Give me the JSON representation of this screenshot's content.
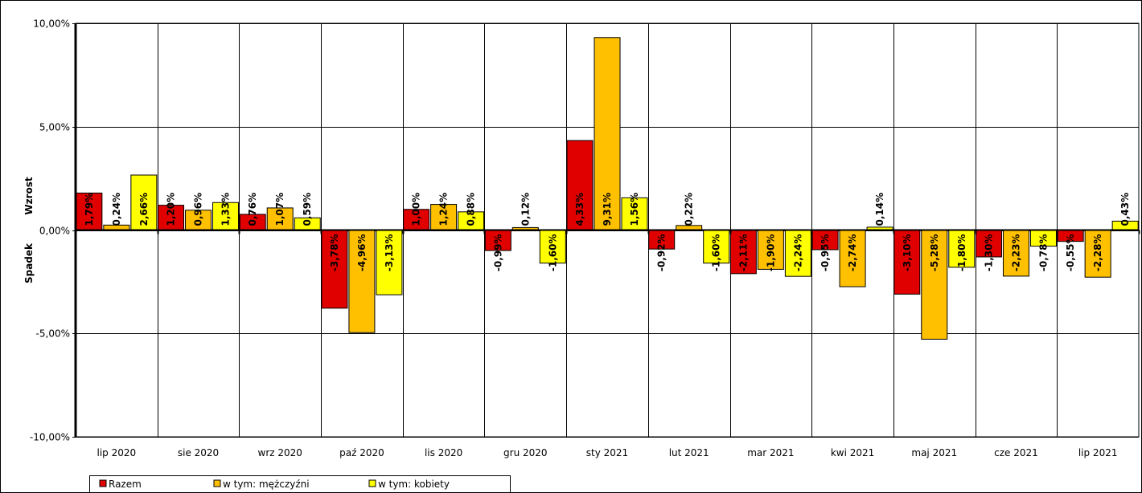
{
  "chart_data": {
    "type": "bar",
    "categories": [
      "lip 2020",
      "sie 2020",
      "wrz 2020",
      "paź 2020",
      "lis 2020",
      "gru 2020",
      "sty 2021",
      "lut 2021",
      "mar 2021",
      "kwi 2021",
      "maj 2021",
      "cze 2021",
      "lip 2021"
    ],
    "series": [
      {
        "name": "Razem",
        "color": "#E00000",
        "values": [
          1.79,
          1.2,
          0.76,
          -3.78,
          1.0,
          -0.99,
          4.33,
          -0.92,
          -2.11,
          -0.95,
          -3.1,
          -1.3,
          -0.55
        ],
        "labels": [
          "1,79%",
          "1,20%",
          "0,76%",
          "-3,78%",
          "1,00%",
          "-0,99%",
          "4,33%",
          "-0,92%",
          "-2,11%",
          "-0,95%",
          "-3,10%",
          "-1,30%",
          "-0,55%"
        ]
      },
      {
        "name": "w tym: mężczyźni",
        "color": "#FFC000",
        "values": [
          0.24,
          0.96,
          1.07,
          -4.96,
          1.24,
          0.12,
          9.31,
          0.22,
          -1.9,
          -2.74,
          -5.28,
          -2.23,
          -2.28
        ],
        "labels": [
          "0,24%",
          "0,96%",
          "1,07%",
          "-4,96%",
          "1,24%",
          "0,12%",
          "9,31%",
          "0,22%",
          "-1,90%",
          "-2,74%",
          "-5,28%",
          "-2,23%",
          "-2,28%"
        ]
      },
      {
        "name": "w tym: kobiety",
        "color": "#FFFF00",
        "values": [
          2.66,
          1.33,
          0.59,
          -3.13,
          0.88,
          -1.6,
          1.56,
          -1.6,
          -2.24,
          0.14,
          -1.8,
          -0.78,
          0.43
        ],
        "labels": [
          "2,66%",
          "1,33%",
          "0,59%",
          "-3,13%",
          "0,88%",
          "-1,60%",
          "1,56%",
          "-1,60%",
          "-2,24%",
          "0,14%",
          "-1,80%",
          "-0,78%",
          "0,43%"
        ]
      }
    ],
    "y_ticks": [
      10,
      5,
      0,
      -5,
      -10
    ],
    "y_tick_labels": [
      "10,00%",
      "5,00%",
      "0,00%",
      "-5,00%",
      "-10,00%"
    ],
    "ylim": [
      -10,
      10
    ],
    "ylabel_positive": "Wzrost",
    "ylabel_negative": "Spadek",
    "grid": true,
    "legend_placement": "bottom-left"
  }
}
